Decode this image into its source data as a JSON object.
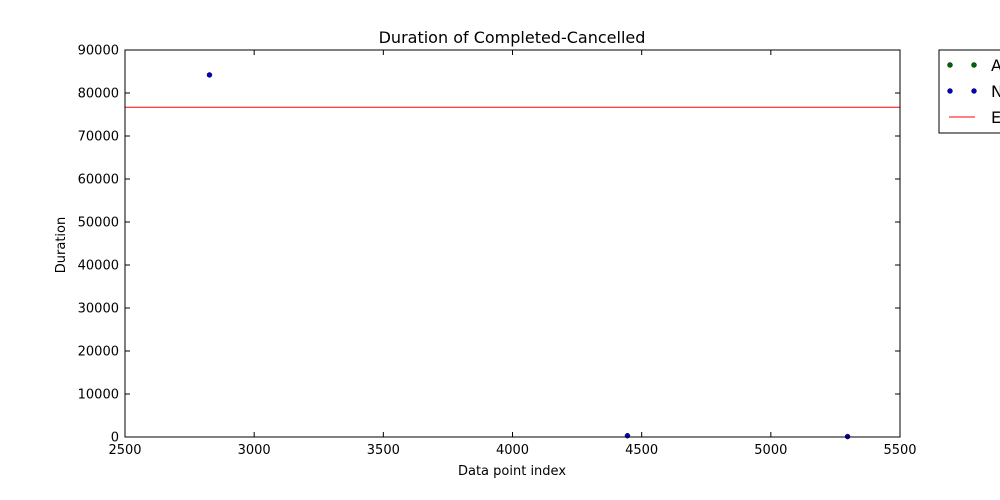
{
  "chart_data": {
    "type": "scatter",
    "title": "Duration of Completed-Cancelled",
    "xlabel": "Data point index",
    "ylabel": "Duration",
    "xlim": [
      2500,
      5500
    ],
    "ylim": [
      0,
      90000
    ],
    "xticks": [
      "2500",
      "3000",
      "3500",
      "4000",
      "4500",
      "5000",
      "5500"
    ],
    "yticks": [
      "0",
      "10000",
      "20000",
      "30000",
      "40000",
      "50000",
      "60000",
      "70000",
      "80000",
      "90000"
    ],
    "grid": false,
    "legend_position": "outside-right",
    "series": [
      {
        "name": "A",
        "kind": "scatter",
        "color": "#006400",
        "points": []
      },
      {
        "name": "N",
        "kind": "scatter",
        "color": "#0000cc",
        "points": [
          {
            "x": 2827,
            "y": 84200
          },
          {
            "x": 4445,
            "y": 300
          },
          {
            "x": 5297,
            "y": 100
          }
        ]
      },
      {
        "name": "E",
        "kind": "hline",
        "color": "#ff0000",
        "y": 76700
      }
    ]
  }
}
